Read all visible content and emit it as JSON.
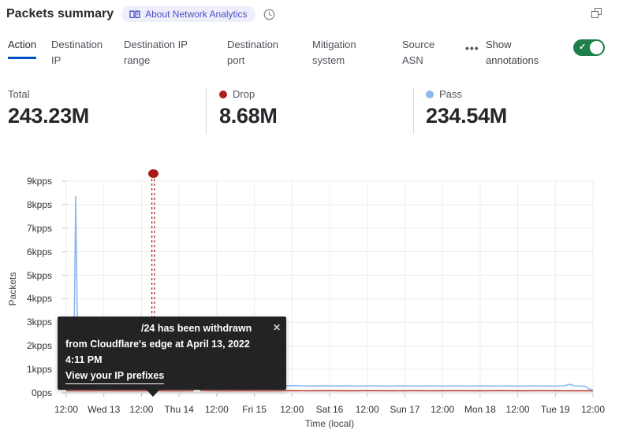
{
  "colors": {
    "accent_blue": "#0051c3",
    "toggle_green": "#1e8048",
    "drop_red": "#b31d1d",
    "pass_blue": "#8fb7f1",
    "annotation_red": "#a81c15"
  },
  "header": {
    "title": "Packets summary",
    "about_badge": "About Network Analytics"
  },
  "icons": {
    "close": "✕",
    "check": "✓",
    "more": "•••"
  },
  "tabs": {
    "items": [
      {
        "label": "Action",
        "active": true
      },
      {
        "label": "Destination IP",
        "active": false
      },
      {
        "label": "Destination IP range",
        "active": false
      },
      {
        "label": "Destination port",
        "active": false
      },
      {
        "label": "Mitigation system",
        "active": false
      },
      {
        "label": "Source ASN",
        "active": false
      }
    ],
    "show_annotations_label": "Show annotations",
    "show_annotations_on": true
  },
  "stats": [
    {
      "label": "Total",
      "value": "243.23M",
      "dot_color": ""
    },
    {
      "label": "Drop",
      "value": "8.68M",
      "dot_color": "#b31d1d"
    },
    {
      "label": "Pass",
      "value": "234.54M",
      "dot_color": "#8fb7f1"
    }
  ],
  "tooltip": {
    "message": "/24 has been withdrawn from Cloudflare's edge at April 13, 2022 4:11 PM",
    "link": "View your IP prefixes"
  },
  "chart_data": {
    "type": "line",
    "title": "Packets summary",
    "xlabel": "Time (local)",
    "ylabel": "Packets",
    "ylim": [
      0,
      9000
    ],
    "y_unit": "pps",
    "grid": true,
    "y_ticks": [
      "0pps",
      "1kpps",
      "2kpps",
      "3kpps",
      "4kpps",
      "5kpps",
      "6kpps",
      "7kpps",
      "8kpps",
      "9kpps"
    ],
    "x_ticks": [
      "12:00",
      "Wed 13",
      "12:00",
      "Thu 14",
      "12:00",
      "Fri 15",
      "12:00",
      "Sat 16",
      "12:00",
      "Sun 17",
      "12:00",
      "Mon 18",
      "12:00",
      "Tue 19",
      "12:00"
    ],
    "annotation": {
      "x_frac": 0.165,
      "time": "April 13, 2022 4:11 PM",
      "line_color": "#a81c15",
      "marker_color": "#a81c15"
    },
    "series": [
      {
        "name": "Drop",
        "color": "#b5392e",
        "total": "8.68M",
        "points": [
          [
            0,
            95
          ],
          [
            0.04,
            92
          ],
          [
            0.08,
            95
          ],
          [
            0.12,
            92
          ],
          [
            0.16,
            95
          ],
          [
            0.2,
            92
          ],
          [
            0.24,
            95
          ],
          [
            0.248,
            380
          ],
          [
            0.256,
            100
          ],
          [
            0.3,
            92
          ],
          [
            0.34,
            95
          ],
          [
            0.38,
            92
          ],
          [
            0.42,
            95
          ],
          [
            0.46,
            92
          ],
          [
            0.5,
            95
          ],
          [
            0.54,
            92
          ],
          [
            0.58,
            95
          ],
          [
            0.62,
            92
          ],
          [
            0.66,
            95
          ],
          [
            0.7,
            92
          ],
          [
            0.74,
            95
          ],
          [
            0.78,
            92
          ],
          [
            0.82,
            95
          ],
          [
            0.86,
            92
          ],
          [
            0.9,
            95
          ],
          [
            0.94,
            92
          ],
          [
            1,
            90
          ]
        ]
      },
      {
        "name": "Pass",
        "color": "#8fb7f1",
        "total": "234.54M",
        "points": [
          [
            0,
            280
          ],
          [
            0.006,
            270
          ],
          [
            0.011,
            280
          ],
          [
            0.014,
            400
          ],
          [
            0.018,
            8350
          ],
          [
            0.022,
            1400
          ],
          [
            0.027,
            700
          ],
          [
            0.034,
            560
          ],
          [
            0.04,
            430
          ],
          [
            0.05,
            340
          ],
          [
            0.065,
            310
          ],
          [
            0.08,
            295
          ],
          [
            0.1,
            300
          ],
          [
            0.113,
            540
          ],
          [
            0.122,
            330
          ],
          [
            0.135,
            295
          ],
          [
            0.15,
            320
          ],
          [
            0.163,
            300
          ],
          [
            0.172,
            370
          ],
          [
            0.18,
            300
          ],
          [
            0.2,
            290
          ],
          [
            0.215,
            310
          ],
          [
            0.235,
            290
          ],
          [
            0.25,
            305
          ],
          [
            0.27,
            290
          ],
          [
            0.285,
            300
          ],
          [
            0.315,
            460
          ],
          [
            0.325,
            305
          ],
          [
            0.345,
            295
          ],
          [
            0.365,
            320
          ],
          [
            0.385,
            295
          ],
          [
            0.4,
            410
          ],
          [
            0.41,
            300
          ],
          [
            0.435,
            310
          ],
          [
            0.455,
            290
          ],
          [
            0.48,
            305
          ],
          [
            0.505,
            290
          ],
          [
            0.53,
            305
          ],
          [
            0.555,
            290
          ],
          [
            0.58,
            300
          ],
          [
            0.61,
            290
          ],
          [
            0.64,
            300
          ],
          [
            0.665,
            290
          ],
          [
            0.69,
            300
          ],
          [
            0.715,
            290
          ],
          [
            0.74,
            300
          ],
          [
            0.765,
            290
          ],
          [
            0.79,
            300
          ],
          [
            0.815,
            290
          ],
          [
            0.84,
            295
          ],
          [
            0.865,
            290
          ],
          [
            0.885,
            300
          ],
          [
            0.905,
            295
          ],
          [
            0.925,
            290
          ],
          [
            0.945,
            300
          ],
          [
            0.956,
            360
          ],
          [
            0.965,
            300
          ],
          [
            0.975,
            290
          ],
          [
            0.985,
            285
          ],
          [
            0.993,
            160
          ],
          [
            1,
            120
          ]
        ]
      }
    ]
  }
}
